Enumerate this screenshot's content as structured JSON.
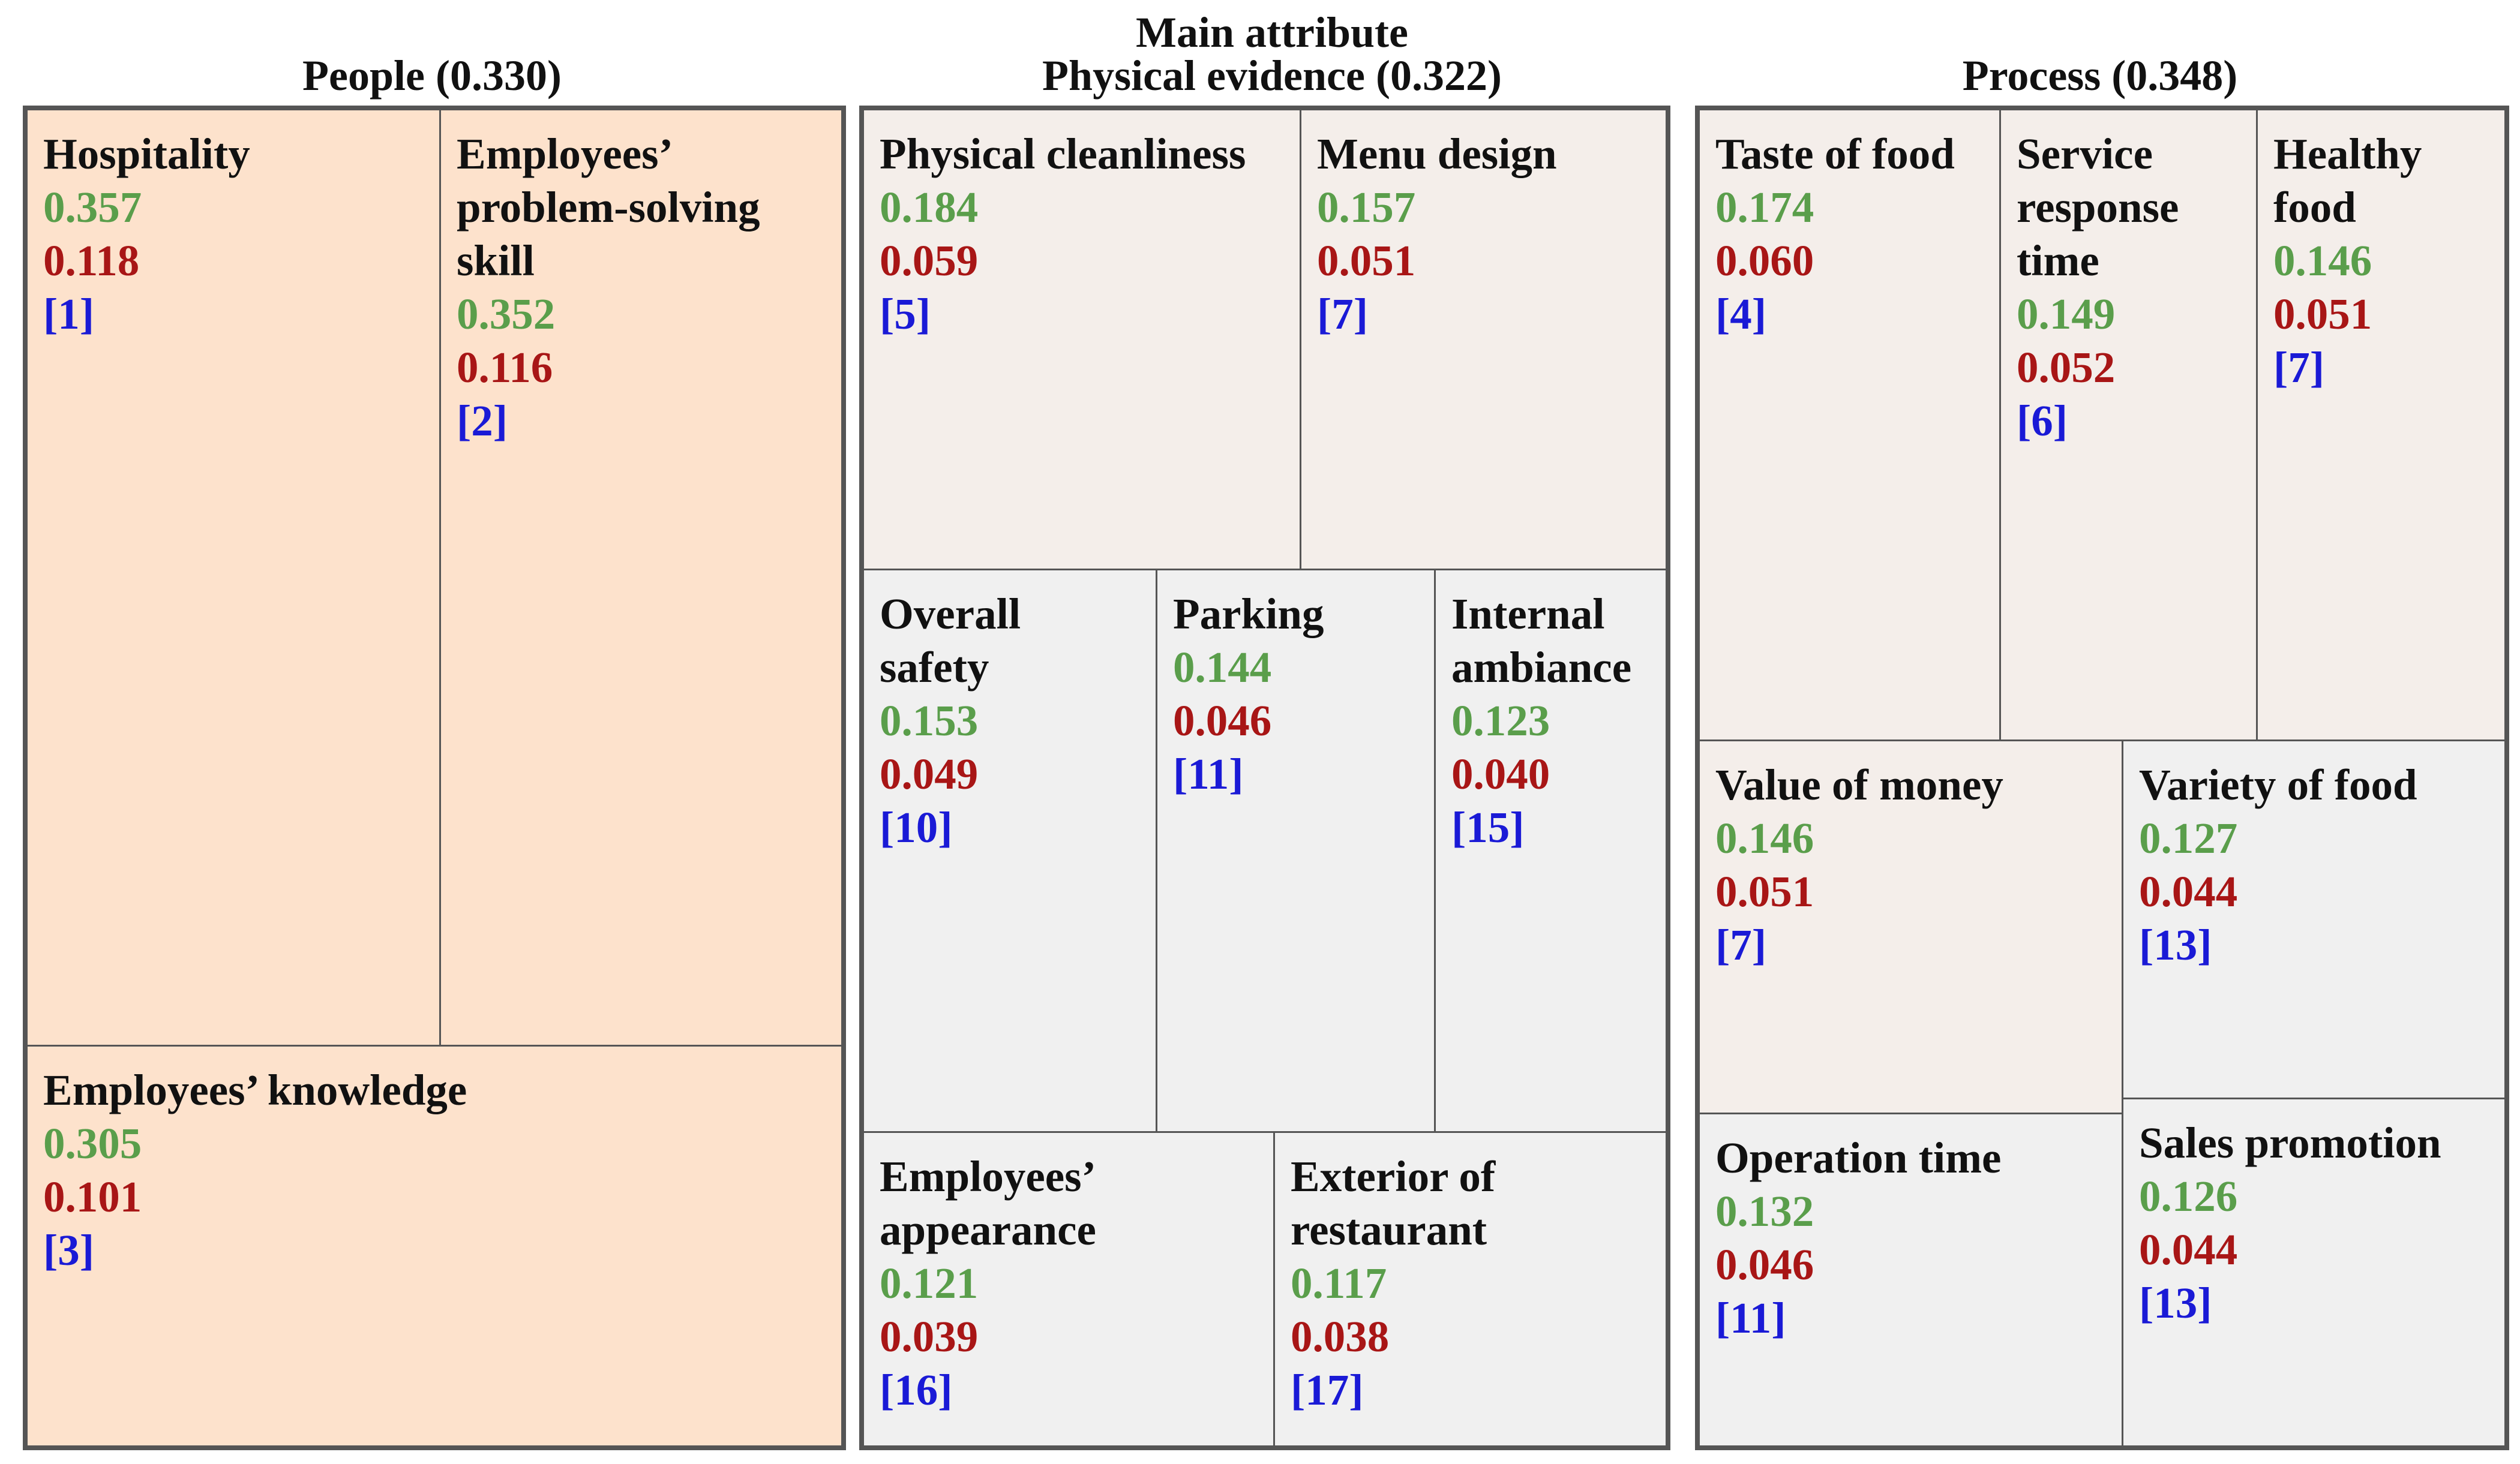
{
  "title": "Main attribute",
  "groups": [
    {
      "label": "People (0.330)"
    },
    {
      "label": "Physical evidence (0.322)"
    },
    {
      "label": "Process (0.348)"
    }
  ],
  "colors": {
    "local_weight": "#5a9e4b",
    "global_weight": "#a81616",
    "rank": "#1a1ad6",
    "people_fill": "#fde2cc",
    "beige_fill": "#f4eeea",
    "grey_fill": "#f0f0f0"
  },
  "people": {
    "hospitality": {
      "name": [
        "Hospitality"
      ],
      "local": "0.357",
      "global": "0.118",
      "rank": "[1]"
    },
    "problem_solving": {
      "name": [
        "Employees’",
        "problem-solving",
        "skill"
      ],
      "local": "0.352",
      "global": "0.116",
      "rank": "[2]"
    },
    "knowledge": {
      "name": [
        "Employees’ knowledge"
      ],
      "local": "0.305",
      "global": "0.101",
      "rank": "[3]"
    }
  },
  "physical": {
    "cleanliness": {
      "name": [
        "Physical cleanliness"
      ],
      "local": "0.184",
      "global": "0.059",
      "rank": "[5]"
    },
    "menu": {
      "name": [
        "Menu design"
      ],
      "local": "0.157",
      "global": "0.051",
      "rank": "[7]"
    },
    "safety": {
      "name": [
        "Overall",
        "safety"
      ],
      "local": "0.153",
      "global": "0.049",
      "rank": "[10]"
    },
    "parking": {
      "name": [
        "Parking"
      ],
      "local": "0.144",
      "global": "0.046",
      "rank": "[11]"
    },
    "ambiance": {
      "name": [
        "Internal",
        "ambiance"
      ],
      "local": "0.123",
      "global": "0.040",
      "rank": "[15]"
    },
    "appearance": {
      "name": [
        "Employees’",
        "appearance"
      ],
      "local": "0.121",
      "global": "0.039",
      "rank": "[16]"
    },
    "exterior": {
      "name": [
        "Exterior of",
        "restaurant"
      ],
      "local": "0.117",
      "global": "0.038",
      "rank": "[17]"
    }
  },
  "process": {
    "taste": {
      "name": [
        "Taste of food"
      ],
      "local": "0.174",
      "global": "0.060",
      "rank": "[4]"
    },
    "response": {
      "name": [
        "Service",
        "response",
        "time"
      ],
      "local": "0.149",
      "global": "0.052",
      "rank": "[6]"
    },
    "healthy": {
      "name": [
        "Healthy",
        "food"
      ],
      "local": "0.146",
      "global": "0.051",
      "rank": "[7]"
    },
    "value": {
      "name": [
        "Value of money"
      ],
      "local": "0.146",
      "global": "0.051",
      "rank": "[7]"
    },
    "variety": {
      "name": [
        "Variety of food"
      ],
      "local": "0.127",
      "global": "0.044",
      "rank": "[13]"
    },
    "operation": {
      "name": [
        "Operation time"
      ],
      "local": "0.132",
      "global": "0.046",
      "rank": "[11]"
    },
    "promotion": {
      "name": [
        "Sales promotion"
      ],
      "local": "0.126",
      "global": "0.044",
      "rank": "[13]"
    }
  }
}
